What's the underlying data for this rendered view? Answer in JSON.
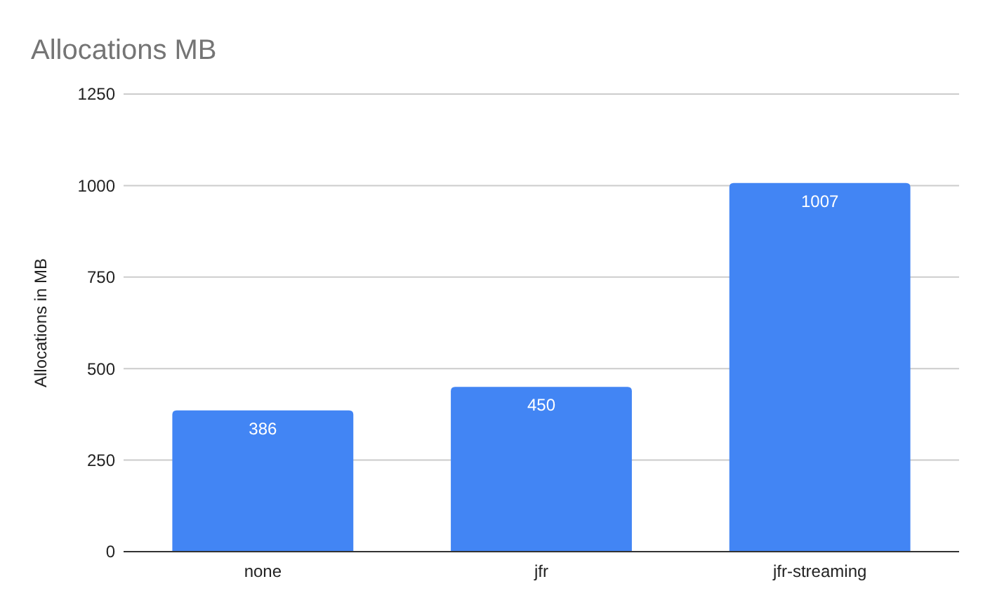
{
  "chart_data": {
    "type": "bar",
    "title": "Allocations MB",
    "ylabel": "Allocations in MB",
    "categories": [
      "none",
      "jfr",
      "jfr-streaming"
    ],
    "values": [
      386,
      450,
      1007
    ],
    "color": "#4285f4",
    "ylim": [
      0,
      1250
    ],
    "yticks": [
      0,
      250,
      500,
      750,
      1000,
      1250
    ],
    "grid": "y",
    "data_labels": true
  }
}
